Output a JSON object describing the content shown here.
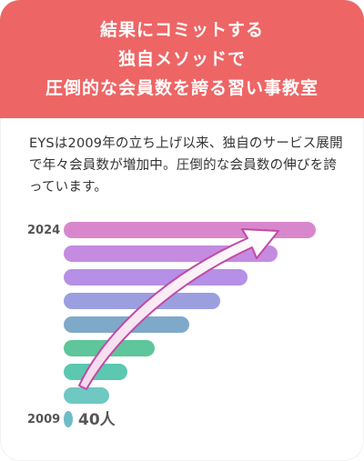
{
  "header": {
    "lines": [
      "結果にコミットする",
      "独自メソッドで",
      "圧倒的な会員数を誇る習い事教室"
    ]
  },
  "description": "EYSは2009年の立ち上げ以来、独自のサービス展開で年々会員数が増加中。圧倒的な会員数の伸びを誇っています。",
  "colors": {
    "header_bg": "#ee6565",
    "text": "#333333",
    "label": "#555555"
  },
  "chart_data": {
    "type": "bar",
    "orientation": "horizontal",
    "start_label": "2009",
    "end_label": "2024",
    "start_value_label": "40人",
    "trend_arrow": true,
    "values": [
      1,
      50,
      70,
      100,
      138,
      172,
      202,
      235,
      277
    ],
    "bar_colors": [
      "#6fbcc6",
      "#6fc8c2",
      "#5cc8b0",
      "#5fc59a",
      "#7fa9c9",
      "#9b9fe0",
      "#b68fe6",
      "#c58be0",
      "#d987cc"
    ]
  }
}
